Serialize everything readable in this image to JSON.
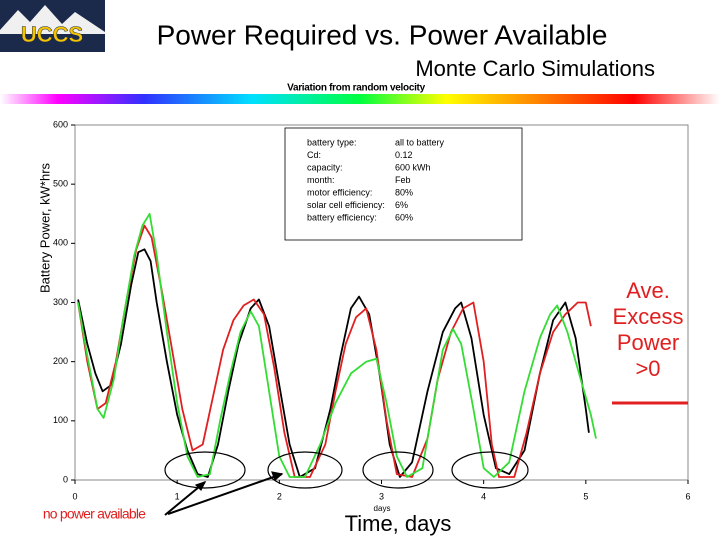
{
  "slide": {
    "logo_text": "UCCS",
    "title": "Power Required vs. Power Available",
    "subtitle": "Monte Carlo Simulations",
    "x_title_large": "Time, days",
    "annotation_lines": [
      "Ave.",
      "Excess",
      "Power",
      ">0"
    ],
    "no_power_label": "no power available",
    "info_box": [
      [
        "battery type:",
        "all to battery"
      ],
      [
        "Cd:",
        "0.12"
      ],
      [
        "capacity:",
        "600 kWh"
      ],
      [
        "month:",
        "Feb"
      ],
      [
        "motor efficiency:",
        "80%"
      ],
      [
        "solar cell efficiency:",
        "6%"
      ],
      [
        "battery efficiency:",
        "60%"
      ]
    ]
  },
  "chart_data": {
    "type": "line",
    "title": "Variation from random velocity",
    "y_label": "Battery Power, kW*hrs",
    "x_label": "days",
    "xlim": [
      0,
      6
    ],
    "xticks": [
      0,
      1,
      2,
      3,
      4,
      5,
      6
    ],
    "ylim": [
      0,
      600
    ],
    "yticks": [
      0,
      100,
      200,
      300,
      400,
      500,
      600
    ],
    "grid": false,
    "series": [
      {
        "color": "#000000",
        "x": [
          0.03,
          0.12,
          0.2,
          0.27,
          0.35,
          0.45,
          0.55,
          0.62,
          0.68,
          0.74,
          0.8,
          0.9,
          1.0,
          1.1,
          1.2,
          1.3,
          1.4,
          1.5,
          1.6,
          1.72,
          1.8,
          1.9,
          2.0,
          2.1,
          2.2,
          2.35,
          2.5,
          2.6,
          2.7,
          2.78,
          2.88,
          2.98,
          3.08,
          3.18,
          3.3,
          3.45,
          3.6,
          3.72,
          3.78,
          3.88,
          4.0,
          4.12,
          4.25,
          4.4,
          4.55,
          4.68,
          4.8,
          4.9,
          5.0,
          5.03
        ],
        "values": [
          305,
          230,
          180,
          150,
          160,
          230,
          330,
          385,
          390,
          370,
          300,
          200,
          110,
          50,
          10,
          5,
          60,
          150,
          230,
          290,
          305,
          260,
          160,
          60,
          5,
          20,
          120,
          210,
          290,
          310,
          280,
          180,
          60,
          5,
          30,
          150,
          250,
          290,
          300,
          240,
          110,
          20,
          10,
          50,
          180,
          270,
          300,
          240,
          120,
          80
        ]
      },
      {
        "color": "#e02020",
        "x": [
          0.03,
          0.12,
          0.22,
          0.3,
          0.4,
          0.5,
          0.6,
          0.68,
          0.75,
          0.85,
          0.95,
          1.05,
          1.15,
          1.25,
          1.35,
          1.45,
          1.55,
          1.65,
          1.75,
          1.85,
          1.95,
          2.05,
          2.15,
          2.3,
          2.45,
          2.55,
          2.65,
          2.75,
          2.85,
          2.95,
          3.05,
          3.15,
          3.3,
          3.45,
          3.55,
          3.68,
          3.8,
          3.9,
          4.0,
          4.08,
          4.15,
          4.3,
          4.42,
          4.55,
          4.68,
          4.8,
          4.92,
          5.0,
          5.05
        ],
        "values": [
          300,
          200,
          120,
          130,
          200,
          300,
          390,
          430,
          410,
          320,
          220,
          120,
          50,
          60,
          140,
          220,
          270,
          295,
          305,
          280,
          190,
          80,
          5,
          5,
          60,
          150,
          230,
          275,
          290,
          220,
          100,
          10,
          5,
          70,
          170,
          250,
          290,
          300,
          200,
          60,
          5,
          5,
          80,
          180,
          250,
          280,
          300,
          300,
          260
        ]
      },
      {
        "color": "#33dd33",
        "x": [
          0.03,
          0.12,
          0.22,
          0.28,
          0.38,
          0.48,
          0.58,
          0.66,
          0.73,
          0.8,
          0.9,
          1.0,
          1.1,
          1.2,
          1.32,
          1.42,
          1.52,
          1.62,
          1.72,
          1.8,
          1.9,
          2.0,
          2.1,
          2.25,
          2.4,
          2.55,
          2.7,
          2.85,
          2.95,
          3.05,
          3.15,
          3.25,
          3.4,
          3.5,
          3.6,
          3.7,
          3.78,
          3.9,
          4.0,
          4.1,
          4.25,
          4.4,
          4.55,
          4.65,
          4.72,
          4.82,
          4.95,
          5.05,
          5.1
        ],
        "values": [
          300,
          210,
          120,
          105,
          170,
          280,
          380,
          430,
          450,
          380,
          250,
          130,
          40,
          5,
          10,
          100,
          180,
          250,
          285,
          260,
          150,
          40,
          5,
          5,
          60,
          130,
          180,
          200,
          205,
          130,
          40,
          5,
          20,
          120,
          220,
          255,
          230,
          120,
          20,
          5,
          30,
          150,
          240,
          280,
          295,
          250,
          170,
          110,
          70
        ]
      }
    ]
  }
}
